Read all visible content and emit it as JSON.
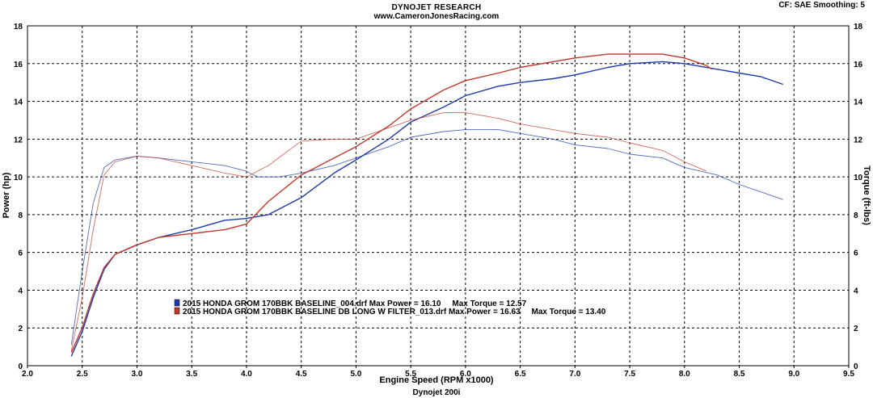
{
  "header": {
    "title": "DYNOJET RESEARCH",
    "subtitle": "www.CameronJonesRacing.com",
    "cf": "CF: SAE  Smoothing: 5",
    "footer": "Dynojet 200i"
  },
  "chart_data": {
    "type": "line",
    "xlabel": "Engine Speed (RPM x1000)",
    "ylabel": "Power (hp)",
    "ylabel_right": "Torque (ft-lbs)",
    "xlim": [
      2.0,
      9.5
    ],
    "ylim": [
      0,
      18
    ],
    "ylim_right": [
      0,
      18
    ],
    "x_ticks": [
      "2.0",
      "2.5",
      "3.0",
      "3.5",
      "4.0",
      "4.5",
      "5.0",
      "5.5",
      "6.0",
      "6.5",
      "7.0",
      "7.5",
      "8.0",
      "8.5",
      "9.0",
      "9.5"
    ],
    "y_ticks": [
      "0",
      "2",
      "4",
      "6",
      "8",
      "10",
      "12",
      "14",
      "16",
      "18"
    ],
    "grid": true,
    "legend_placement": "bottom-left",
    "colors": {
      "run1": "#1f3aa8",
      "run2": "#c0392b"
    },
    "series": [
      {
        "name": "2015 HONDA GROM 170BBK BASELINE_004.drf Max Power = 16.10     Max Torque = 12.57",
        "run": "run1",
        "measure": "power",
        "x": [
          2.4,
          2.5,
          2.6,
          2.7,
          2.8,
          3.0,
          3.2,
          3.5,
          3.8,
          4.0,
          4.2,
          4.5,
          4.8,
          5.0,
          5.3,
          5.5,
          5.8,
          6.0,
          6.3,
          6.5,
          6.8,
          7.0,
          7.3,
          7.5,
          7.8,
          8.0,
          8.3,
          8.5,
          8.7,
          8.9
        ],
        "y": [
          0.5,
          1.8,
          3.6,
          5.1,
          5.9,
          6.4,
          6.8,
          7.2,
          7.7,
          7.8,
          8.0,
          8.9,
          10.2,
          10.9,
          12.0,
          12.9,
          13.7,
          14.3,
          14.8,
          15.0,
          15.2,
          15.4,
          15.8,
          16.0,
          16.1,
          16.0,
          15.7,
          15.5,
          15.3,
          14.9
        ]
      },
      {
        "name": "2015 HONDA GROM 170BBK BASELINE_004.drf Max Power = 16.10     Max Torque = 12.57",
        "run": "run1",
        "measure": "torque",
        "x": [
          2.4,
          2.5,
          2.6,
          2.7,
          2.8,
          3.0,
          3.2,
          3.5,
          3.8,
          4.0,
          4.1,
          4.3,
          4.5,
          4.8,
          5.0,
          5.3,
          5.5,
          5.8,
          6.0,
          6.3,
          6.5,
          6.8,
          7.0,
          7.3,
          7.5,
          7.8,
          8.0,
          8.3,
          8.5,
          8.7,
          8.9
        ],
        "y": [
          1.1,
          5.0,
          8.6,
          10.5,
          10.9,
          11.1,
          11.0,
          10.8,
          10.6,
          10.3,
          10.0,
          10.0,
          10.2,
          10.6,
          11.0,
          11.6,
          12.1,
          12.4,
          12.5,
          12.5,
          12.3,
          12.0,
          11.7,
          11.5,
          11.2,
          11.0,
          10.5,
          10.1,
          9.6,
          9.2,
          8.8
        ]
      },
      {
        "name": "2015 HONDA GROM 170BBK BASELINE DB LONG W FILTER_013.drf Max Power = 16.63     Max Torque = 13.40",
        "run": "run2",
        "measure": "power",
        "x": [
          2.4,
          2.5,
          2.6,
          2.7,
          2.8,
          3.0,
          3.2,
          3.5,
          3.8,
          4.0,
          4.2,
          4.5,
          4.8,
          5.0,
          5.3,
          5.5,
          5.8,
          6.0,
          6.3,
          6.5,
          6.8,
          7.0,
          7.3,
          7.5,
          7.8,
          8.0,
          8.2,
          8.25
        ],
        "y": [
          0.7,
          2.0,
          3.8,
          5.2,
          5.9,
          6.4,
          6.8,
          7.0,
          7.2,
          7.5,
          8.7,
          10.1,
          11.0,
          11.6,
          12.7,
          13.6,
          14.6,
          15.1,
          15.5,
          15.8,
          16.1,
          16.3,
          16.5,
          16.5,
          16.5,
          16.3,
          15.9,
          15.7
        ]
      },
      {
        "name": "2015 HONDA GROM 170BBK BASELINE DB LONG W FILTER_013.drf Max Power = 16.63     Max Torque = 13.40",
        "run": "run2",
        "measure": "torque",
        "x": [
          2.4,
          2.5,
          2.6,
          2.7,
          2.8,
          3.0,
          3.2,
          3.5,
          3.8,
          4.0,
          4.2,
          4.5,
          4.8,
          5.0,
          5.3,
          5.5,
          5.8,
          6.0,
          6.3,
          6.5,
          6.8,
          7.0,
          7.3,
          7.5,
          7.8,
          8.0,
          8.2
        ],
        "y": [
          0.8,
          3.6,
          7.2,
          10.1,
          10.8,
          11.1,
          11.0,
          10.6,
          10.2,
          10.0,
          10.6,
          11.9,
          12.0,
          12.0,
          12.6,
          13.0,
          13.4,
          13.4,
          13.1,
          12.8,
          12.5,
          12.3,
          12.1,
          11.8,
          11.4,
          10.8,
          10.3
        ]
      }
    ],
    "legend": [
      {
        "label": "2015 HONDA GROM 170BBK BASELINE_004.drf Max Power = 16.10     Max Torque = 12.57",
        "run": "run1"
      },
      {
        "label": "2015 HONDA GROM 170BBK BASELINE DB LONG W FILTER_013.drf Max Power = 16.63     Max Torque = 13.40",
        "run": "run2"
      }
    ]
  }
}
